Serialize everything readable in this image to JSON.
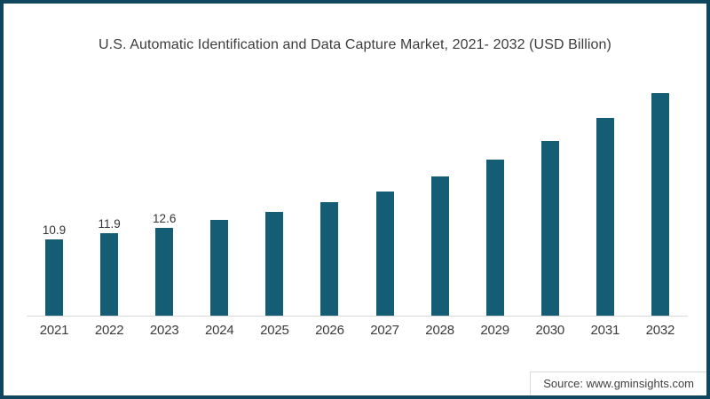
{
  "header": {
    "title": "U.S. Automatic Identification and Data Capture Market, 2021- 2032  (USD Billion)"
  },
  "footer": {
    "source": "Source: www.gminsights.com"
  },
  "colors": {
    "bar": "#155d75",
    "frame_border": "#10475f",
    "axis_line": "#d9d9d9",
    "text": "#3c3c3c"
  },
  "chart_data": {
    "type": "bar",
    "title": "U.S. Automatic Identification and Data Capture Market, 2021- 2032  (USD Billion)",
    "xlabel": "",
    "ylabel": "USD Billion",
    "categories": [
      "2021",
      "2022",
      "2023",
      "2024",
      "2025",
      "2026",
      "2027",
      "2028",
      "2029",
      "2030",
      "2031",
      "2032"
    ],
    "values": [
      10.9,
      11.9,
      12.6,
      13.8,
      14.9,
      16.3,
      17.9,
      20.0,
      22.4,
      25.1,
      28.4,
      32.0
    ],
    "data_labels": [
      "10.9",
      "11.9",
      "12.6",
      "",
      "",
      "",
      "",
      "",
      "",
      "",
      "",
      ""
    ],
    "ylim": [
      0,
      32.6
    ],
    "grid": false,
    "legend": "none",
    "bar_color": "#155d75",
    "baseline_axis": "x-axis only, light gray, no y-axis ticks"
  }
}
